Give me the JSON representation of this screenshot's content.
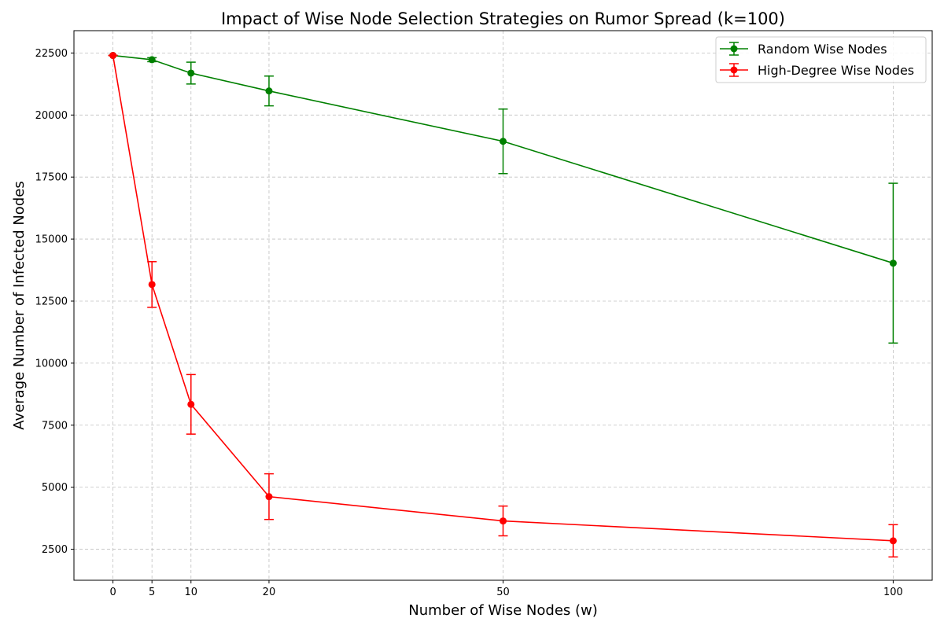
{
  "chart_data": {
    "type": "line",
    "title": "Impact of Wise Node Selection Strategies on Rumor Spread (k=100)",
    "xlabel": "Number of Wise Nodes (w)",
    "ylabel": "Average Number of Infected Nodes",
    "x_ticks": [
      "0",
      "5",
      "10",
      "20",
      "50",
      "100"
    ],
    "y_ticks": [
      "2500",
      "5000",
      "7500",
      "10000",
      "12500",
      "15000",
      "17500",
      "20000",
      "22500"
    ],
    "xlim": [
      -5,
      105
    ],
    "ylim": [
      1250,
      23400
    ],
    "grid": true,
    "legend_position": "top-right",
    "series": [
      {
        "name": "Random Wise Nodes",
        "color": "#008000",
        "x": [
          0,
          5,
          10,
          20,
          50,
          100
        ],
        "y": [
          22400,
          22230,
          21690,
          20970,
          18940,
          14030
        ],
        "yerr": [
          0,
          80,
          440,
          600,
          1300,
          3220
        ]
      },
      {
        "name": "High-Degree Wise Nodes",
        "color": "#ff0000",
        "x": [
          0,
          5,
          10,
          20,
          50,
          100
        ],
        "y": [
          22400,
          13170,
          8340,
          4620,
          3640,
          2840
        ],
        "yerr": [
          0,
          920,
          1200,
          920,
          600,
          650
        ]
      }
    ]
  }
}
